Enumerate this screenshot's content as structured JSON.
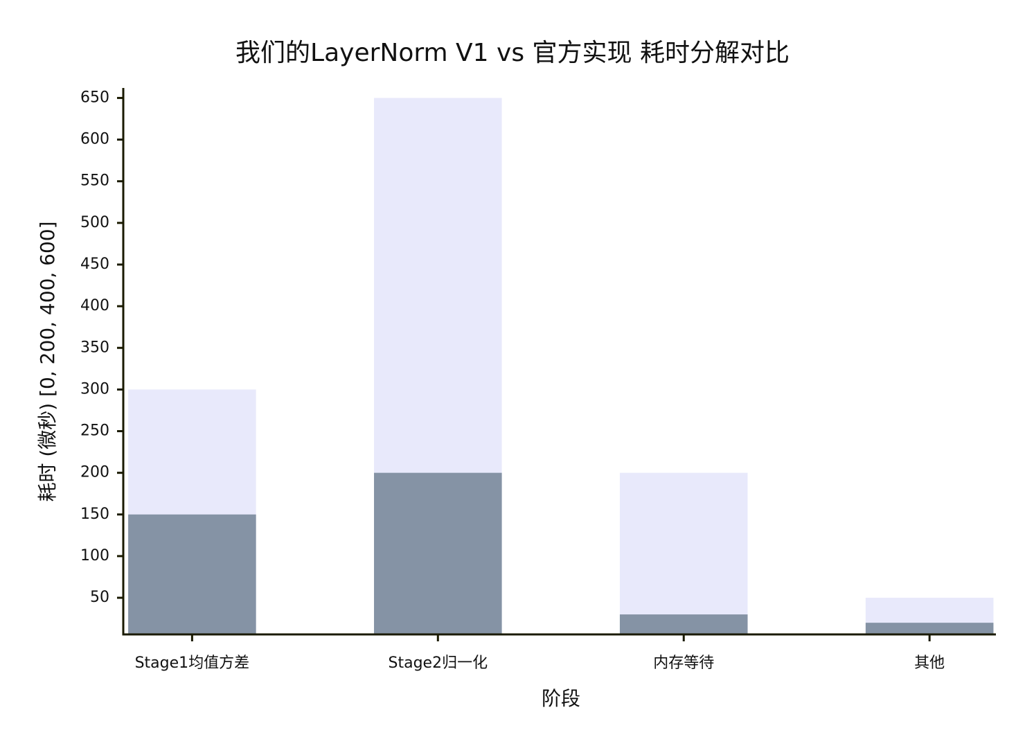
{
  "chart_data": {
    "type": "bar",
    "overlap": true,
    "title": "我们的LayerNorm V1 vs 官方实现 耗时分解对比",
    "xlabel": "阶段",
    "ylabel": "耗时 (微秒) [0, 200, 400, 600]",
    "categories": [
      "Stage1均值方差",
      "Stage2归一化",
      "内存等待",
      "其他"
    ],
    "series": [
      {
        "color": "#e8e9fb",
        "values": [
          300,
          650,
          200,
          50
        ]
      },
      {
        "color": "#8593a5",
        "values": [
          150,
          200,
          30,
          20
        ]
      }
    ],
    "ylim": [
      6,
      662
    ],
    "yticks": [
      50,
      100,
      150,
      200,
      250,
      300,
      350,
      400,
      450,
      500,
      550,
      600,
      650
    ],
    "grid": false
  }
}
